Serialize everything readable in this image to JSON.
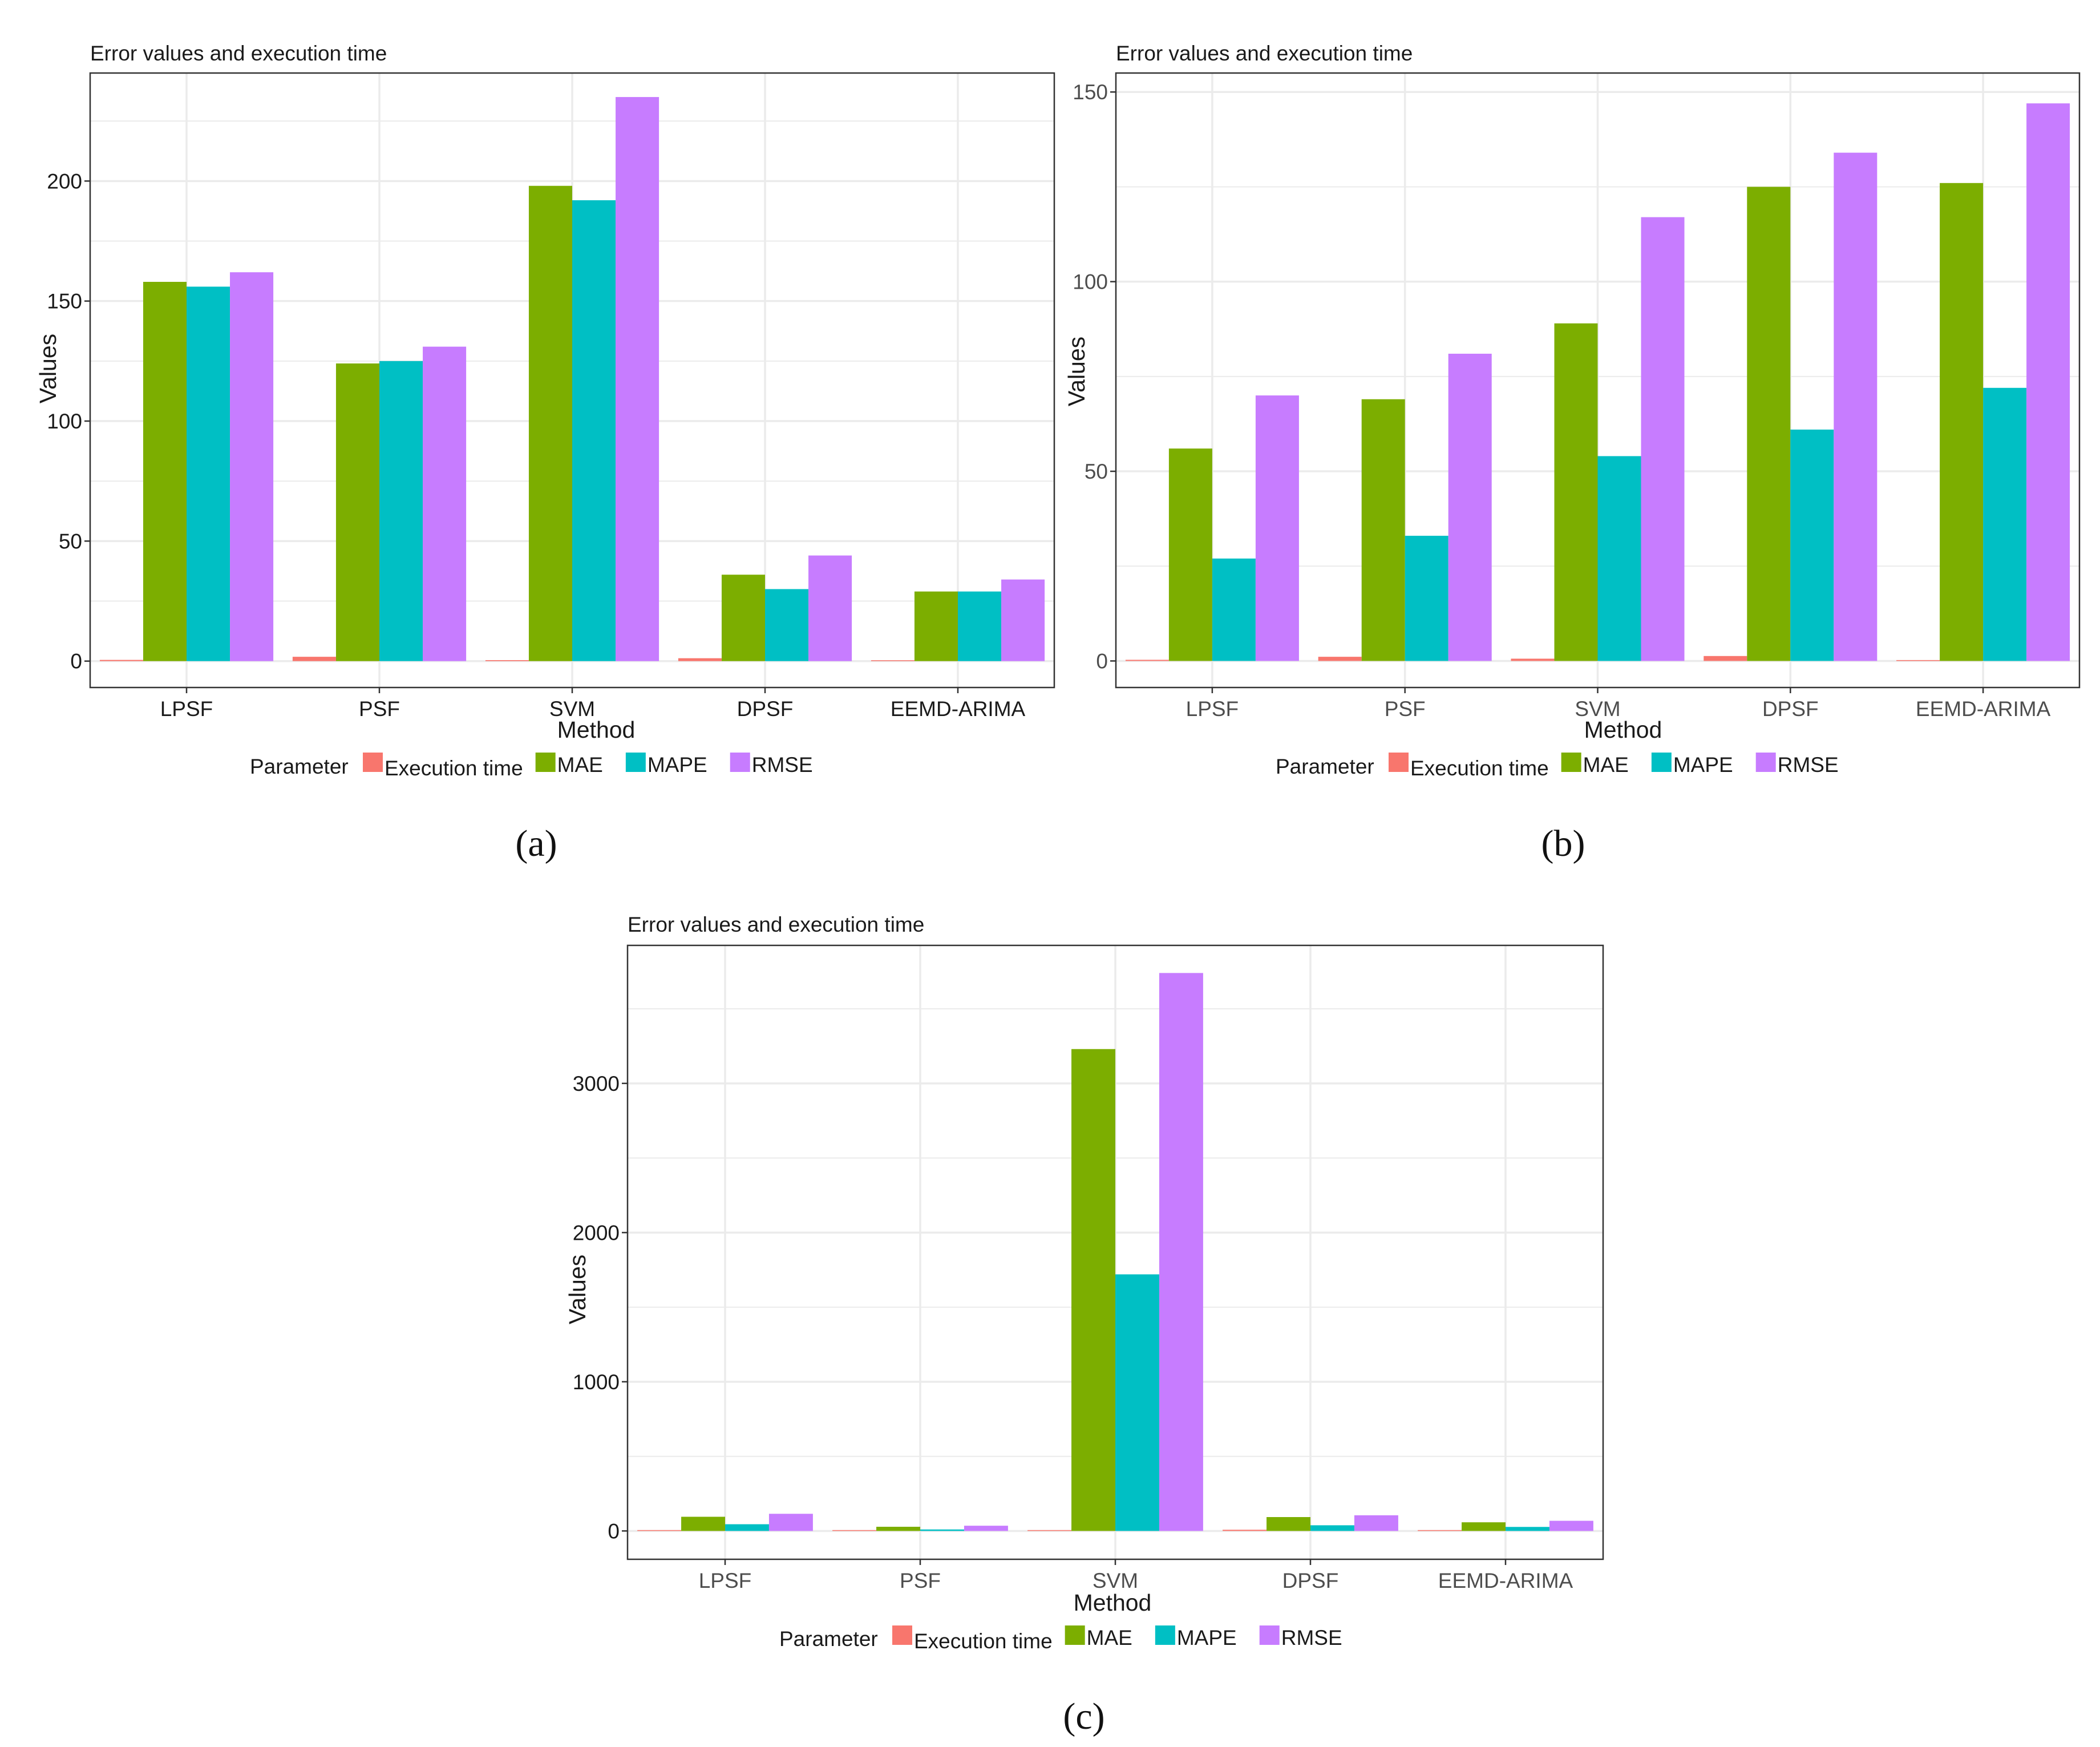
{
  "colors": {
    "Execution time": "#F8766D",
    "MAE": "#7CAE00",
    "MAPE": "#00BFC4",
    "RMSE": "#C77CFF",
    "grid": "#EBEBEB",
    "panel_border": "#333333",
    "text": "#1a1a1a",
    "tick_text": "#4d4d4d"
  },
  "chart_data": [
    {
      "type": "bar",
      "caption": "(a)",
      "title": "Error values and execution time",
      "xlabel": "Method",
      "ylabel": "Values",
      "legend_title": "Parameter",
      "legend_position": "bottom",
      "grid": true,
      "categories": [
        "LPSF",
        "PSF",
        "SVM",
        "DPSF",
        "EEMD-ARIMA"
      ],
      "ylim": [
        -11,
        245
      ],
      "yticks": [
        0,
        50,
        100,
        150,
        200
      ],
      "ytick_labels": [
        "0",
        "50",
        "100",
        "150",
        "200"
      ],
      "series": [
        {
          "name": "Execution time",
          "values": [
            0.5,
            1.8,
            0.4,
            1.2,
            0.3
          ]
        },
        {
          "name": "MAE",
          "values": [
            158,
            124,
            198,
            36,
            29
          ]
        },
        {
          "name": "MAPE",
          "values": [
            156,
            125,
            192,
            30,
            29
          ]
        },
        {
          "name": "RMSE",
          "values": [
            162,
            131,
            235,
            44,
            34
          ]
        }
      ]
    },
    {
      "type": "bar",
      "caption": "(b)",
      "title": "Error values and execution time",
      "xlabel": "Method",
      "ylabel": "Values",
      "legend_title": "Parameter",
      "legend_position": "bottom",
      "grid": true,
      "categories": [
        "LPSF",
        "PSF",
        "SVM",
        "DPSF",
        "EEMD-ARIMA"
      ],
      "ylim": [
        -7,
        155
      ],
      "yticks": [
        0,
        50,
        100,
        150
      ],
      "ytick_labels": [
        "0",
        "50",
        "100",
        "150"
      ],
      "series": [
        {
          "name": "Execution time",
          "values": [
            0.3,
            1.1,
            0.6,
            1.3,
            0.2
          ]
        },
        {
          "name": "MAE",
          "values": [
            56,
            69,
            89,
            125,
            126
          ]
        },
        {
          "name": "MAPE",
          "values": [
            27,
            33,
            54,
            61,
            72
          ]
        },
        {
          "name": "RMSE",
          "values": [
            70,
            81,
            117,
            134,
            147
          ]
        }
      ]
    },
    {
      "type": "bar",
      "caption": "(c)",
      "title": "Error values and execution time",
      "xlabel": "Method",
      "ylabel": "Values",
      "legend_title": "Parameter",
      "legend_position": "bottom",
      "grid": true,
      "categories": [
        "LPSF",
        "PSF",
        "SVM",
        "DPSF",
        "EEMD-ARIMA"
      ],
      "ylim": [
        -190,
        3925
      ],
      "yticks": [
        0,
        1000,
        2000,
        3000
      ],
      "ytick_labels": [
        "0",
        "1000",
        "2000",
        "3000"
      ],
      "series": [
        {
          "name": "Execution time",
          "values": [
            3,
            5,
            4,
            8,
            3
          ]
        },
        {
          "name": "MAE",
          "values": [
            95,
            28,
            3230,
            93,
            58
          ]
        },
        {
          "name": "MAPE",
          "values": [
            45,
            10,
            1720,
            38,
            27
          ]
        },
        {
          "name": "RMSE",
          "values": [
            115,
            35,
            3740,
            105,
            68
          ]
        }
      ]
    }
  ]
}
